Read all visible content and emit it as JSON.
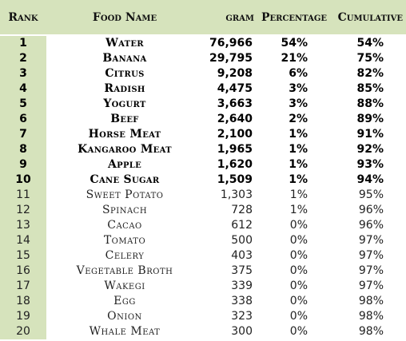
{
  "header": {
    "rank": "Rank",
    "food_name": "Food Name",
    "gram": "gram",
    "percentage": "Percentage",
    "cumulative": "Cumulative"
  },
  "rows": [
    {
      "rank": "1",
      "name": "Water",
      "gram": "76,966",
      "pct": "54%",
      "cum": "54%",
      "bold": true
    },
    {
      "rank": "2",
      "name": "Banana",
      "gram": "29,795",
      "pct": "21%",
      "cum": "75%",
      "bold": true
    },
    {
      "rank": "3",
      "name": "Citrus",
      "gram": "9,208",
      "pct": "6%",
      "cum": "82%",
      "bold": true
    },
    {
      "rank": "4",
      "name": "Radish",
      "gram": "4,475",
      "pct": "3%",
      "cum": "85%",
      "bold": true
    },
    {
      "rank": "5",
      "name": "Yogurt",
      "gram": "3,663",
      "pct": "3%",
      "cum": "88%",
      "bold": true
    },
    {
      "rank": "6",
      "name": "Beef",
      "gram": "2,640",
      "pct": "2%",
      "cum": "89%",
      "bold": true
    },
    {
      "rank": "7",
      "name": "Horse Meat",
      "gram": "2,100",
      "pct": "1%",
      "cum": "91%",
      "bold": true
    },
    {
      "rank": "8",
      "name": "Kangaroo Meat",
      "gram": "1,965",
      "pct": "1%",
      "cum": "92%",
      "bold": true
    },
    {
      "rank": "9",
      "name": "Apple",
      "gram": "1,620",
      "pct": "1%",
      "cum": "93%",
      "bold": true
    },
    {
      "rank": "10",
      "name": "Cane Sugar",
      "gram": "1,509",
      "pct": "1%",
      "cum": "94%",
      "bold": true
    },
    {
      "rank": "11",
      "name": "Sweet Potato",
      "gram": "1,303",
      "pct": "1%",
      "cum": "95%",
      "bold": false
    },
    {
      "rank": "12",
      "name": "Spinach",
      "gram": "728",
      "pct": "1%",
      "cum": "96%",
      "bold": false
    },
    {
      "rank": "13",
      "name": "Cacao",
      "gram": "612",
      "pct": "0%",
      "cum": "96%",
      "bold": false
    },
    {
      "rank": "14",
      "name": "Tomato",
      "gram": "500",
      "pct": "0%",
      "cum": "97%",
      "bold": false
    },
    {
      "rank": "15",
      "name": "Celery",
      "gram": "403",
      "pct": "0%",
      "cum": "97%",
      "bold": false
    },
    {
      "rank": "16",
      "name": "Vegetable Broth",
      "gram": "375",
      "pct": "0%",
      "cum": "97%",
      "bold": false
    },
    {
      "rank": "17",
      "name": "Wakegi",
      "gram": "339",
      "pct": "0%",
      "cum": "97%",
      "bold": false
    },
    {
      "rank": "18",
      "name": "Egg",
      "gram": "338",
      "pct": "0%",
      "cum": "98%",
      "bold": false
    },
    {
      "rank": "19",
      "name": "Onion",
      "gram": "323",
      "pct": "0%",
      "cum": "98%",
      "bold": false
    },
    {
      "rank": "20",
      "name": "Whale Meat",
      "gram": "300",
      "pct": "0%",
      "cum": "98%",
      "bold": false
    }
  ],
  "colors": {
    "header_fill": "#d6e3bc",
    "rank_column_fill": "#d6e3bc",
    "body_fill": "#ffffff"
  }
}
